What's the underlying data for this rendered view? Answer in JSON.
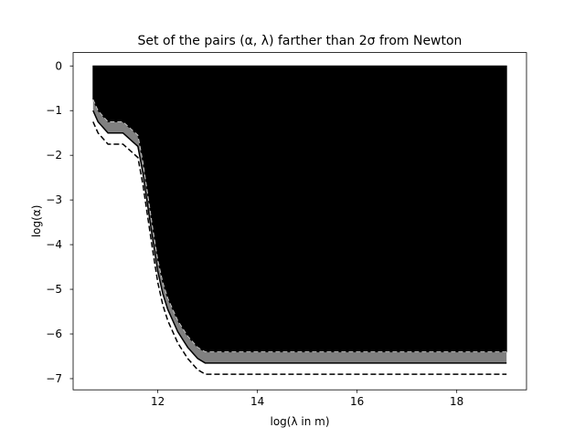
{
  "chart_data": {
    "type": "area",
    "title": "Set of the pairs (α, λ) farther than 2σ from Newton",
    "xlabel": "log(λ in m)",
    "ylabel": "log(α)",
    "xlim": [
      10.3,
      19.4
    ],
    "ylim": [
      -7.25,
      0.3
    ],
    "xticks": [
      12,
      14,
      16,
      18
    ],
    "yticks": [
      0,
      -1,
      -2,
      -3,
      -4,
      -5,
      -6,
      -7
    ],
    "xtick_labels": [
      "12",
      "14",
      "16",
      "18"
    ],
    "ytick_labels": [
      "0",
      "−1",
      "−2",
      "−3",
      "−4",
      "−5",
      "−6",
      "−7"
    ],
    "grid": false,
    "legend": "none",
    "region_top": 0,
    "colors": {
      "region": "#000000",
      "band": "#808080",
      "solid": "#000000",
      "dashed": "#000000",
      "inner_dashed": "#cccccc"
    },
    "series": [
      {
        "style": "region-boundary",
        "x": [
          10.7,
          10.8,
          11.0,
          11.3,
          11.5,
          11.6,
          11.7,
          11.8,
          11.9,
          12.0,
          12.1,
          12.2,
          12.4,
          12.6,
          12.8,
          12.95,
          19.0
        ],
        "y": [
          -0.75,
          -1.0,
          -1.25,
          -1.25,
          -1.45,
          -1.55,
          -2.15,
          -2.9,
          -3.65,
          -4.35,
          -4.85,
          -5.2,
          -5.7,
          -6.05,
          -6.3,
          -6.4,
          -6.4
        ]
      },
      {
        "style": "solid",
        "x": [
          10.7,
          10.8,
          11.0,
          11.3,
          11.5,
          11.6,
          11.7,
          11.8,
          11.9,
          12.0,
          12.1,
          12.2,
          12.4,
          12.6,
          12.8,
          12.95,
          19.0
        ],
        "y": [
          -1.0,
          -1.25,
          -1.5,
          -1.5,
          -1.7,
          -1.8,
          -2.4,
          -3.15,
          -3.9,
          -4.6,
          -5.1,
          -5.45,
          -5.95,
          -6.3,
          -6.55,
          -6.65,
          -6.65
        ]
      },
      {
        "style": "dashed",
        "x": [
          10.7,
          10.8,
          11.0,
          11.3,
          11.5,
          11.6,
          11.7,
          11.8,
          11.9,
          12.0,
          12.1,
          12.2,
          12.4,
          12.6,
          12.8,
          12.95,
          19.0
        ],
        "y": [
          -1.25,
          -1.5,
          -1.75,
          -1.75,
          -1.95,
          -2.05,
          -2.65,
          -3.4,
          -4.15,
          -4.85,
          -5.35,
          -5.7,
          -6.2,
          -6.55,
          -6.8,
          -6.9,
          -6.9
        ]
      }
    ]
  }
}
